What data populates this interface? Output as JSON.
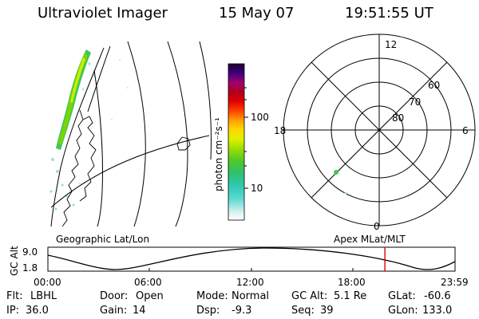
{
  "header": {
    "instrument": "Ultraviolet Imager",
    "date": "15 May 07",
    "time": "19:51:55 UT"
  },
  "colorbar": {
    "unit_label": "photon cm⁻²s⁻¹",
    "tick_100": "100",
    "tick_10": "10"
  },
  "polar": {
    "mlt_top": "12",
    "mlt_left": "18",
    "mlt_right": "6",
    "mlt_bottom": "0",
    "lat_60": "60",
    "lat_70": "70",
    "lat_80": "80"
  },
  "panel_labels": {
    "left": "Geographic Lat/Lon",
    "right": "Apex  MLat/MLT"
  },
  "orbit": {
    "ylabel": "GC Alt",
    "y_top": "9.0",
    "y_bottom": "1.8",
    "x_ticks": [
      "00:00",
      "06:00",
      "12:00",
      "18:00",
      "23:59"
    ],
    "current_time_fraction": 0.8277,
    "current_marker_color": "#e00000"
  },
  "info": {
    "row1": [
      {
        "key": "Flt:",
        "val": "LBHL"
      },
      {
        "key": "Door:",
        "val": "Open"
      },
      {
        "key": "Mode:",
        "val": "Normal"
      },
      {
        "key": "GC Alt:",
        "val": "5.1 Re"
      },
      {
        "key": "GLat:",
        "val": "-60.6"
      }
    ],
    "row2": [
      {
        "key": "IP:",
        "val": "36.0"
      },
      {
        "key": "Gain:",
        "val": "14"
      },
      {
        "key": "Dsp:",
        "val": "-9.3"
      },
      {
        "key": "Seq:",
        "val": "39"
      },
      {
        "key": "GLon:",
        "val": "133.0"
      }
    ]
  },
  "colors": {
    "aurora_bright": "#7fd400",
    "aurora_mid": "#3ec85a",
    "aurora_faint": "#9fe0d8"
  }
}
